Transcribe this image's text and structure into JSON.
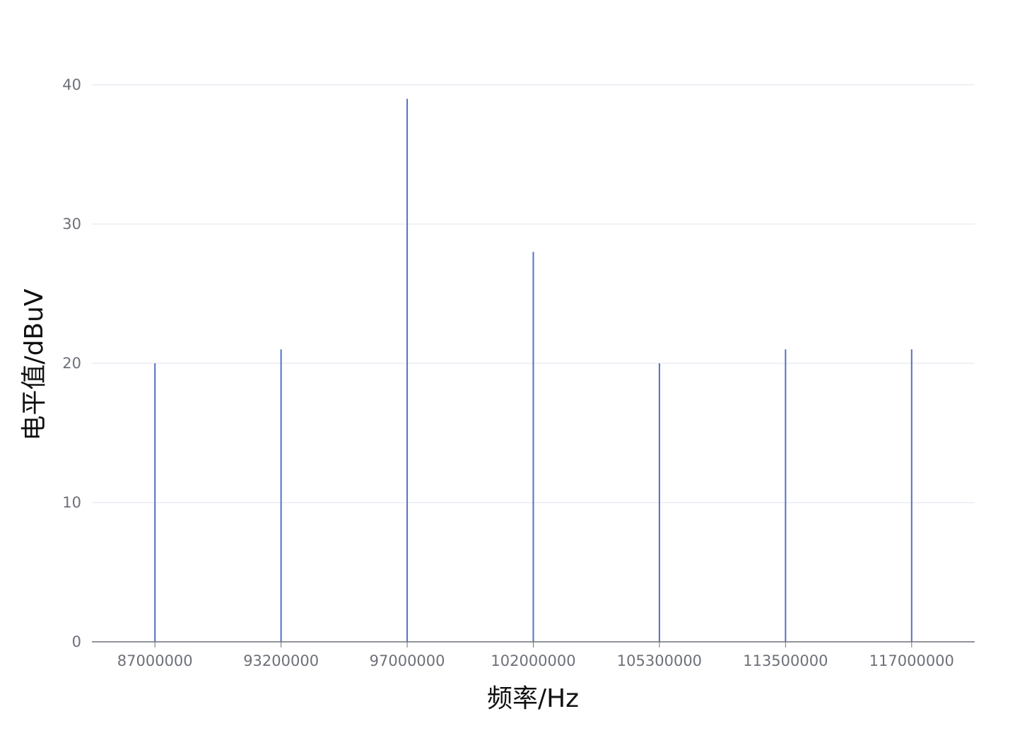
{
  "chart_data": {
    "type": "bar",
    "xlabel": "频率/Hz",
    "ylabel": "电平值/dBuV",
    "categories": [
      "87000000",
      "93200000",
      "97000000",
      "102000000",
      "105300000",
      "113500000",
      "117000000"
    ],
    "series": [
      {
        "values": [
          20,
          21,
          39,
          28,
          20,
          21,
          21
        ]
      }
    ],
    "ylim": [
      0,
      40
    ],
    "yticks": [
      0,
      10,
      20,
      30,
      40
    ],
    "grid": true,
    "colors": {
      "series": "#5470c6"
    }
  }
}
